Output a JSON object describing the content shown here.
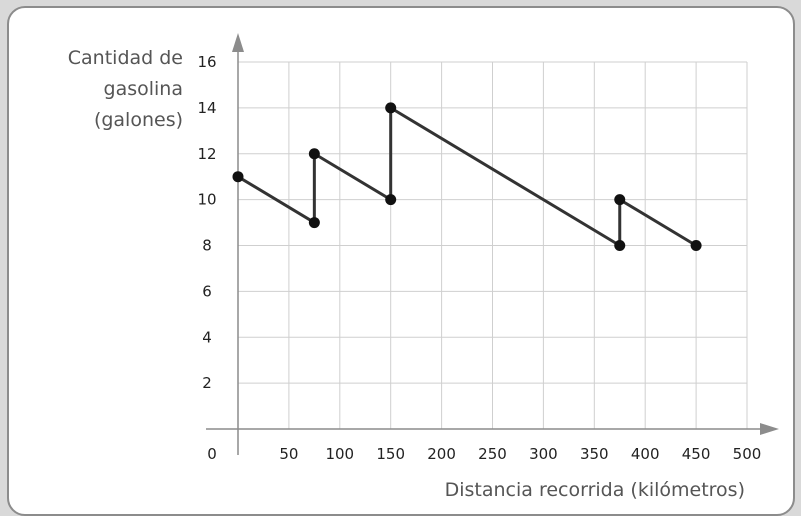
{
  "chart_data": {
    "type": "line",
    "xlabel": "Distancia recorrida (kilómetros)",
    "ylabel_lines": [
      "Cantidad de",
      "gasolina",
      "(galones)"
    ],
    "x_ticks": [
      0,
      50,
      100,
      150,
      200,
      250,
      300,
      350,
      400,
      450,
      500
    ],
    "y_ticks": [
      2,
      4,
      6,
      8,
      10,
      12,
      14,
      16
    ],
    "origin_label": "0",
    "xlim": [
      0,
      500
    ],
    "ylim": [
      0,
      16
    ],
    "grid": true,
    "series": [
      {
        "points": [
          [
            0,
            11
          ],
          [
            75,
            9
          ],
          [
            75,
            12
          ],
          [
            150,
            10
          ],
          [
            150,
            14
          ],
          [
            375,
            8
          ],
          [
            375,
            10
          ],
          [
            450,
            8
          ]
        ]
      }
    ]
  },
  "colors": {
    "line": "#333333",
    "grid": "#cfcfcf",
    "axis": "#8c8c8c",
    "frame_border": "#8c8c8c",
    "background": "#d9d9d9"
  }
}
